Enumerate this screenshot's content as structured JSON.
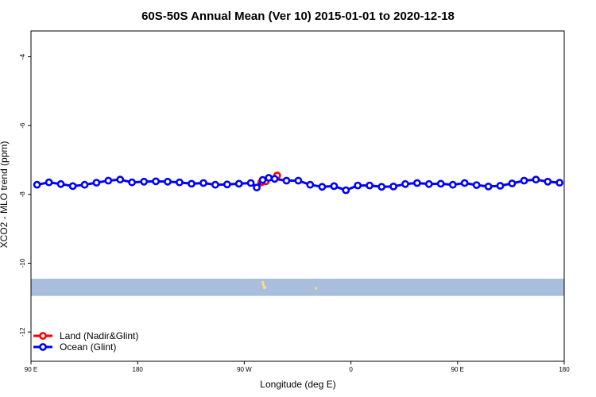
{
  "chart_data": {
    "type": "line",
    "title": "60S-50S Annual Mean (Ver 10)   2015-01-01 to 2020-12-18",
    "xlabel": "Longitude (deg E)",
    "ylabel": "XCO2 - MLO trend (ppm)",
    "xlim": [
      90,
      450
    ],
    "ylim": [
      -12.85,
      -3.25
    ],
    "x_ticks": [
      {
        "value": 90,
        "label": "90 E"
      },
      {
        "value": 162,
        "label": "180"
      },
      {
        "value": 234,
        "label": "90 W"
      },
      {
        "value": 306,
        "label": "0"
      },
      {
        "value": 378,
        "label": "90 E"
      },
      {
        "value": 450,
        "label": "180"
      }
    ],
    "y_ticks": [
      {
        "value": -4,
        "label": "-4"
      },
      {
        "value": -6,
        "label": "-6"
      },
      {
        "value": -8,
        "label": "-8"
      },
      {
        "value": -10,
        "label": "-10"
      },
      {
        "value": -12,
        "label": "-12"
      }
    ],
    "land_band": {
      "ymin": -10.95,
      "ymax": -10.45,
      "color": "#a8bedc"
    },
    "land_specks": [
      {
        "x": 246.5,
        "y": -10.55
      },
      {
        "x": 246.9,
        "y": -10.62
      },
      {
        "x": 247.3,
        "y": -10.68
      },
      {
        "x": 247.6,
        "y": -10.72
      },
      {
        "x": 248.1,
        "y": -10.7
      },
      {
        "x": 282.5,
        "y": -10.73
      }
    ],
    "speck_color": "#f5dc82",
    "series": [
      {
        "name": "Land (Nadir&Glint)",
        "color": "#ff0000",
        "x": [
          245.5,
          248.5,
          256.2
        ],
        "y": [
          -7.65,
          -7.62,
          -7.45
        ]
      },
      {
        "name": "Ocean (Glint)",
        "color": "#0000ff",
        "x": [
          94.1,
          102.1,
          110.1,
          118.2,
          126.2,
          134.2,
          142.2,
          150.2,
          158.2,
          166.3,
          174.3,
          182.3,
          190.3,
          198.4,
          206.4,
          214.4,
          222.4,
          230.4,
          238.4,
          242.4,
          246.4,
          250.5,
          254.5,
          262.5,
          270.5,
          278.5,
          286.6,
          294.6,
          302.6,
          310.6,
          318.6,
          326.7,
          334.7,
          342.7,
          350.7,
          358.7,
          366.7,
          374.8,
          382.8,
          390.8,
          398.8,
          406.8,
          414.8,
          422.9,
          430.9,
          438.9,
          446.9
        ],
        "y": [
          -7.72,
          -7.65,
          -7.7,
          -7.76,
          -7.72,
          -7.66,
          -7.6,
          -7.57,
          -7.65,
          -7.63,
          -7.62,
          -7.63,
          -7.65,
          -7.69,
          -7.67,
          -7.72,
          -7.71,
          -7.69,
          -7.67,
          -7.8,
          -7.58,
          -7.52,
          -7.55,
          -7.6,
          -7.6,
          -7.72,
          -7.78,
          -7.76,
          -7.88,
          -7.74,
          -7.74,
          -7.78,
          -7.77,
          -7.7,
          -7.67,
          -7.7,
          -7.69,
          -7.72,
          -7.67,
          -7.73,
          -7.77,
          -7.75,
          -7.68,
          -7.6,
          -7.57,
          -7.63,
          -7.66
        ]
      }
    ],
    "legend": {
      "placement": "bottom-left",
      "entries": [
        "Land (Nadir&Glint)",
        "Ocean (Glint)"
      ]
    }
  }
}
